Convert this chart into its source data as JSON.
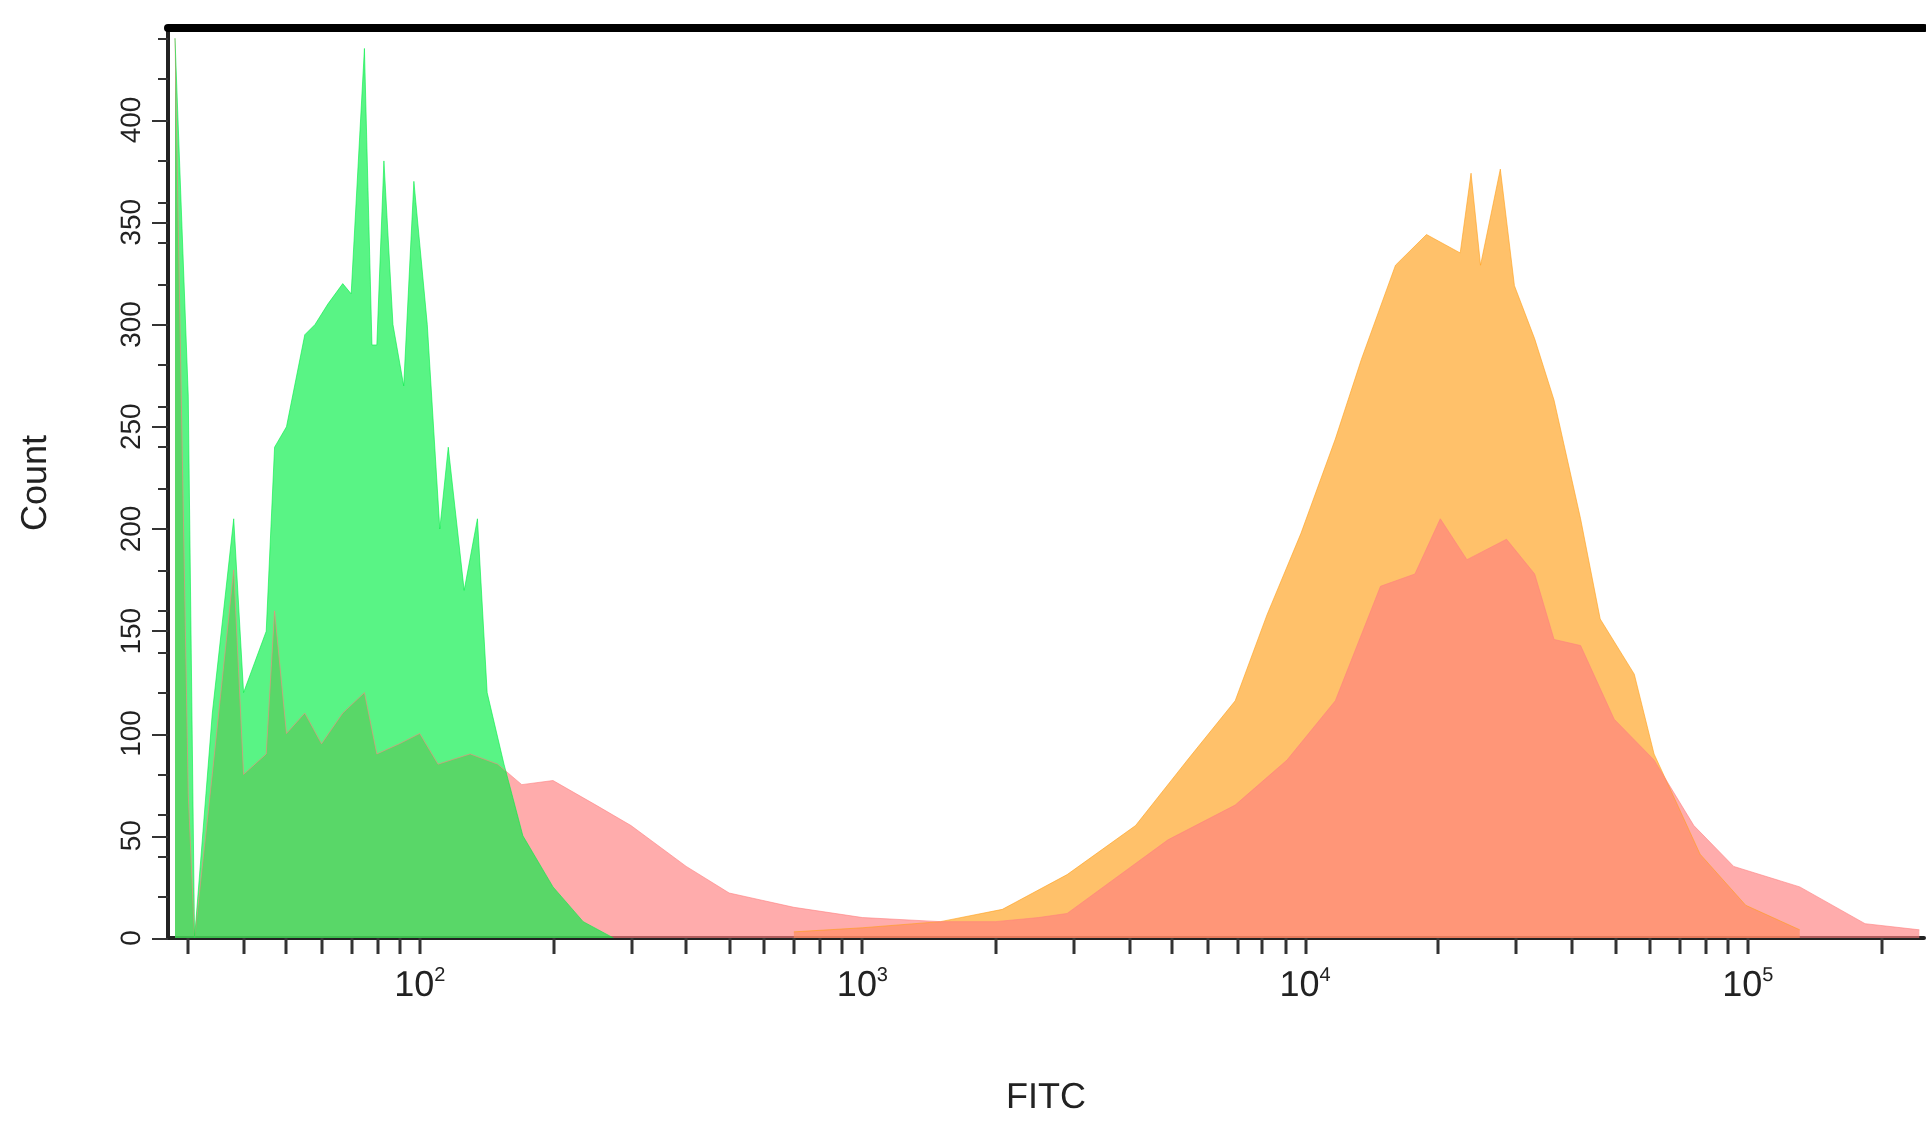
{
  "chart_data": {
    "type": "area",
    "xlabel": "FITC",
    "ylabel": "Count",
    "log": "x",
    "grid": false,
    "marker": "none",
    "line_style": "solid",
    "xlim": [
      27,
      250000
    ],
    "xticks": [
      {
        "value": 30,
        "label": null
      },
      {
        "value": 40,
        "label": null
      },
      {
        "value": 50,
        "label": null
      },
      {
        "value": 60,
        "label": null
      },
      {
        "value": 70,
        "label": null
      },
      {
        "value": 80,
        "label": null
      },
      {
        "value": 90,
        "label": null
      },
      {
        "value": 100,
        "label": "10$^{2}$"
      },
      {
        "value": 200,
        "label": null
      },
      {
        "value": 300,
        "label": null
      },
      {
        "value": 400,
        "label": null
      },
      {
        "value": 500,
        "label": null
      },
      {
        "value": 600,
        "label": null
      },
      {
        "value": 700,
        "label": null
      },
      {
        "value": 800,
        "label": null
      },
      {
        "value": 900,
        "label": null
      },
      {
        "value": 1000,
        "label": "10$^{3}$"
      },
      {
        "value": 2000,
        "label": null
      },
      {
        "value": 3000,
        "label": null
      },
      {
        "value": 4000,
        "label": null
      },
      {
        "value": 5000,
        "label": null
      },
      {
        "value": 6000,
        "label": null
      },
      {
        "value": 7000,
        "label": null
      },
      {
        "value": 8000,
        "label": null
      },
      {
        "value": 9000,
        "label": null
      },
      {
        "value": 10000,
        "label": "10$^{4}$"
      },
      {
        "value": 20000,
        "label": null
      },
      {
        "value": 30000,
        "label": null
      },
      {
        "value": 40000,
        "label": null
      },
      {
        "value": 50000,
        "label": null
      },
      {
        "value": 60000,
        "label": null
      },
      {
        "value": 70000,
        "label": null
      },
      {
        "value": 80000,
        "label": null
      },
      {
        "value": 90000,
        "label": null
      },
      {
        "value": 100000,
        "label": "10$^{5}$"
      },
      {
        "value": 200000,
        "label": null
      }
    ],
    "ylim": [
      0,
      445
    ],
    "yticks": [
      0,
      50,
      100,
      150,
      200,
      250,
      300,
      350,
      400
    ],
    "series": [
      {
        "color": "#ff9f1a",
        "x": [
          700,
          1000,
          1500,
          2070,
          2900,
          4140,
          5420,
          6950,
          8200,
          9790,
          11700,
          13400,
          16000,
          18800,
          22400,
          23700,
          24900,
          27600,
          29700,
          33000,
          36500,
          41900,
          46400,
          55400,
          61400,
          78000,
          98900,
          131000
        ],
        "values": [
          3,
          5,
          8,
          14,
          31,
          55,
          87,
          116,
          158,
          198,
          244,
          283,
          329,
          344,
          335,
          374,
          329,
          376,
          319,
          293,
          263,
          205,
          156,
          129,
          90,
          41,
          16,
          4
        ]
      },
      {
        "color": "#ff7f7f",
        "x": [
          28,
          30,
          31,
          34,
          38,
          40,
          45,
          47,
          50,
          55,
          60,
          67,
          75,
          80,
          90,
          100,
          110,
          130,
          150,
          170,
          200,
          250,
          300,
          400,
          500,
          700,
          1000,
          1500,
          2000,
          2500,
          2900,
          4900,
          6950,
          9100,
          11700,
          14800,
          17700,
          20200,
          23200,
          28500,
          33000,
          36500,
          41900,
          49900,
          61400,
          75500,
          92900,
          131000,
          184000,
          244000
        ],
        "values": [
          440,
          70,
          0,
          80,
          180,
          80,
          90,
          160,
          100,
          110,
          95,
          110,
          120,
          90,
          95,
          100,
          85,
          90,
          85,
          75,
          77,
          65,
          55,
          35,
          22,
          15,
          10,
          8,
          8,
          10,
          12,
          48,
          65,
          87,
          116,
          172,
          178,
          205,
          185,
          195,
          178,
          146,
          143,
          107,
          87,
          55,
          35,
          25,
          7,
          4
        ]
      },
      {
        "color": "#00ee44",
        "x": [
          28,
          30,
          31,
          34,
          38,
          40,
          45,
          47,
          50,
          55,
          58,
          62,
          67,
          70,
          75,
          78,
          80,
          83,
          87,
          92,
          97,
          104,
          111,
          116,
          126,
          135,
          142,
          155,
          171,
          200,
          234,
          274
        ],
        "values": [
          440,
          265,
          0,
          110,
          205,
          120,
          150,
          240,
          250,
          295,
          300,
          310,
          320,
          315,
          435,
          290,
          290,
          380,
          300,
          270,
          370,
          300,
          200,
          240,
          170,
          205,
          120,
          85,
          50,
          25,
          8,
          0
        ]
      }
    ]
  }
}
